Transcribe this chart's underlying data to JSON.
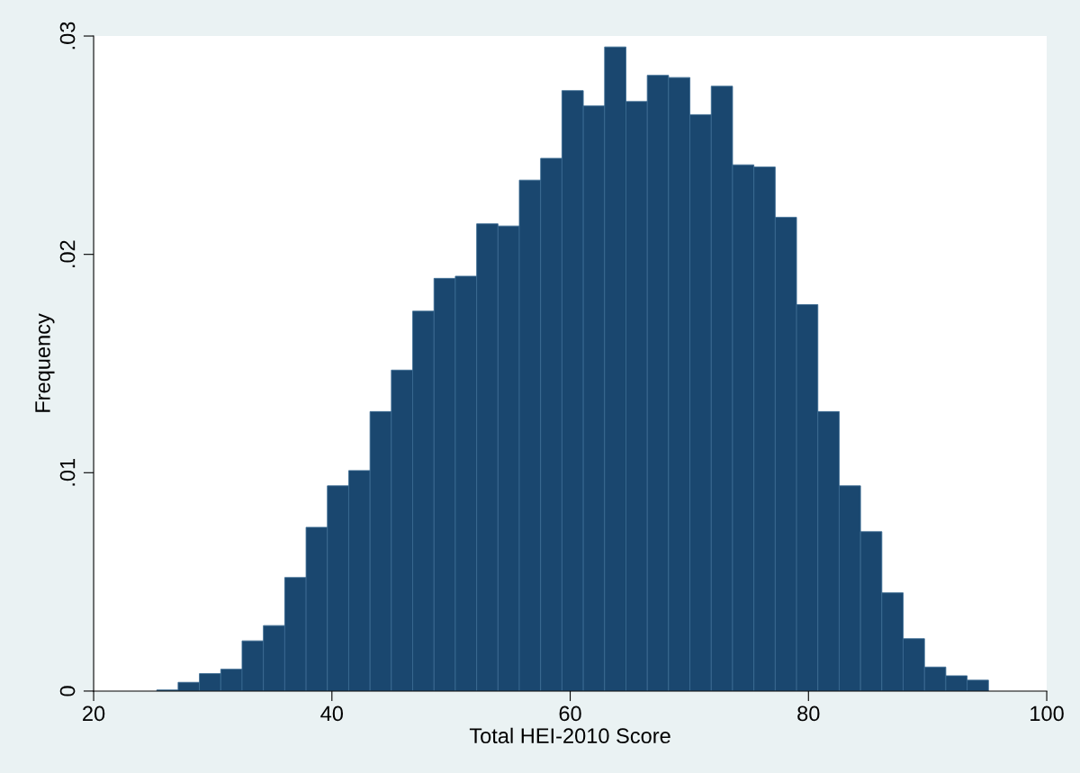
{
  "chart_data": {
    "type": "histogram",
    "xlabel": "Total HEI-2010 Score",
    "ylabel": "Frequency",
    "color": "#1a476f",
    "bins": [
      25.3,
      27.09,
      28.88,
      30.67,
      32.46,
      34.25,
      36.04,
      37.83,
      39.62,
      41.41,
      43.2,
      44.99,
      46.78,
      48.57,
      50.36,
      52.15,
      53.94,
      55.73,
      57.52,
      59.31,
      61.1,
      62.89,
      64.68,
      66.47,
      68.26,
      70.05,
      71.84,
      73.63,
      75.42,
      77.21,
      79.0,
      80.79,
      82.58,
      84.37,
      86.16,
      87.95,
      89.74,
      91.53,
      93.32,
      95.11
    ],
    "values": [
      5e-05,
      0.0004,
      0.0008,
      0.001,
      0.0023,
      0.003,
      0.0052,
      0.0075,
      0.0094,
      0.0101,
      0.0128,
      0.0147,
      0.0174,
      0.0189,
      0.019,
      0.0214,
      0.0213,
      0.0234,
      0.0244,
      0.0275,
      0.0268,
      0.0295,
      0.027,
      0.0282,
      0.0281,
      0.0264,
      0.0277,
      0.0241,
      0.024,
      0.0217,
      0.0177,
      0.0128,
      0.0094,
      0.0073,
      0.0045,
      0.0024,
      0.0011,
      0.0007,
      0.0005
    ],
    "xlim": [
      20,
      100
    ],
    "xticks": [
      20,
      40,
      60,
      80,
      100
    ],
    "ylim": [
      0,
      0.03
    ],
    "yticks": [
      {
        "value": 0,
        "label": "0"
      },
      {
        "value": 0.01,
        "label": ".01"
      },
      {
        "value": 0.02,
        "label": ".02"
      },
      {
        "value": 0.03,
        "label": ".03"
      }
    ],
    "grid": false,
    "legend": false
  }
}
